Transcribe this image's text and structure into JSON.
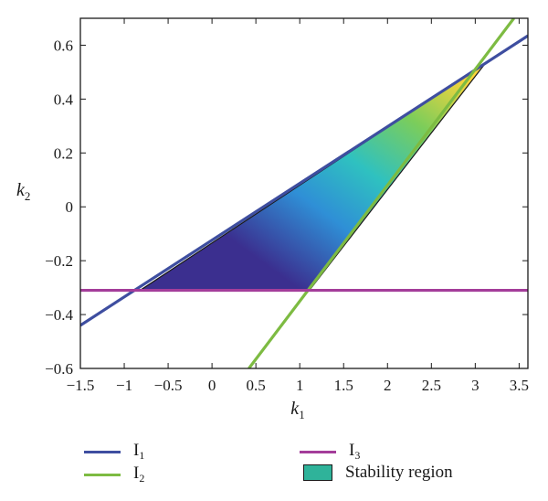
{
  "chart_data": {
    "type": "line",
    "xlabel": "k",
    "xlabel_sub": "1",
    "ylabel": "k",
    "ylabel_sub": "2",
    "xlim": [
      -1.5,
      3.6
    ],
    "ylim": [
      -0.6,
      0.7
    ],
    "xticks": [
      -1.5,
      -1,
      -0.5,
      0,
      0.5,
      1,
      1.5,
      2,
      2.5,
      3,
      3.5
    ],
    "xtick_labels": [
      "−1.5",
      "−1",
      "−0.5",
      "0",
      "0.5",
      "1",
      "1.5",
      "2",
      "2.5",
      "3",
      "3.5"
    ],
    "yticks": [
      -0.6,
      -0.4,
      -0.2,
      0,
      0.2,
      0.4,
      0.6
    ],
    "ytick_labels": [
      "−0.6",
      "−0.4",
      "−0.2",
      "0",
      "0.2",
      "0.4",
      "0.6"
    ],
    "grid": false,
    "legend_position": "bottom",
    "series": [
      {
        "name": "I",
        "sub": "1",
        "color": "#3e4ea0",
        "x": [
          -1.5,
          3.6
        ],
        "y": [
          -0.44,
          0.635
        ]
      },
      {
        "name": "I",
        "sub": "2",
        "color": "#7dbb42",
        "x": [
          0.42,
          3.44
        ],
        "y": [
          -0.6,
          0.7
        ]
      },
      {
        "name": "I",
        "sub": "3",
        "color": "#a43d9a",
        "x": [
          -1.5,
          3.6
        ],
        "y": [
          -0.31,
          -0.31
        ]
      }
    ],
    "region": {
      "name": "Stability region",
      "vertices": [
        [
          -0.82,
          -0.31
        ],
        [
          1.11,
          -0.31
        ],
        [
          3.12,
          0.535
        ]
      ],
      "legend_color": "#2fb39a",
      "colormap": [
        "#3b2f8f",
        "#2f8fd6",
        "#2fc1c0",
        "#7ccd5a",
        "#ffd43a"
      ]
    }
  },
  "legend": {
    "items": [
      {
        "label": "I",
        "sub": "1",
        "kind": "line",
        "color": "#3e4ea0"
      },
      {
        "label": "I",
        "sub": "2",
        "kind": "line",
        "color": "#7dbb42"
      },
      {
        "label": "I",
        "sub": "3",
        "kind": "line",
        "color": "#a43d9a"
      },
      {
        "label": "Stability region",
        "sub": "",
        "kind": "box",
        "color": "#2fb39a"
      }
    ]
  }
}
